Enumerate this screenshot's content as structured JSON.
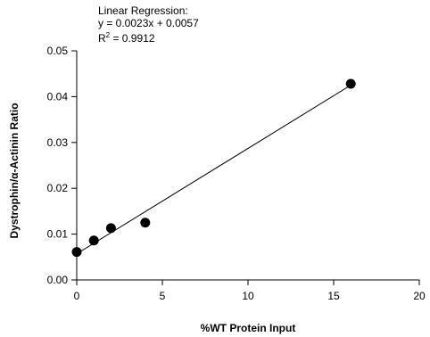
{
  "chart_data": {
    "type": "scatter",
    "title": "",
    "xlabel": "%WT Protein Input",
    "ylabel": "Dystrophin/α-Actinin Ratio",
    "xlim": [
      0,
      20
    ],
    "ylim": [
      0,
      0.05
    ],
    "x_ticks": [
      "0",
      "5",
      "10",
      "15",
      "20"
    ],
    "y_ticks": [
      "0.00",
      "0.01",
      "0.02",
      "0.03",
      "0.04",
      "0.05"
    ],
    "grid": false,
    "points": [
      {
        "x": 0,
        "y": 0.0061
      },
      {
        "x": 1,
        "y": 0.0086
      },
      {
        "x": 2,
        "y": 0.0113
      },
      {
        "x": 4,
        "y": 0.0125
      },
      {
        "x": 16,
        "y": 0.0428
      }
    ],
    "regression": {
      "slope": 0.0023,
      "intercept": 0.0057,
      "x_range": [
        0,
        16
      ]
    },
    "annotation": {
      "line1": "Linear Regression:",
      "line2": "y = 0.0023x + 0.0057",
      "line3_prefix": "R",
      "line3_sup": "2",
      "line3_suffix": " = 0.9912"
    },
    "colors": {
      "points": "#000000",
      "line": "#000000",
      "axis": "#000000"
    }
  }
}
